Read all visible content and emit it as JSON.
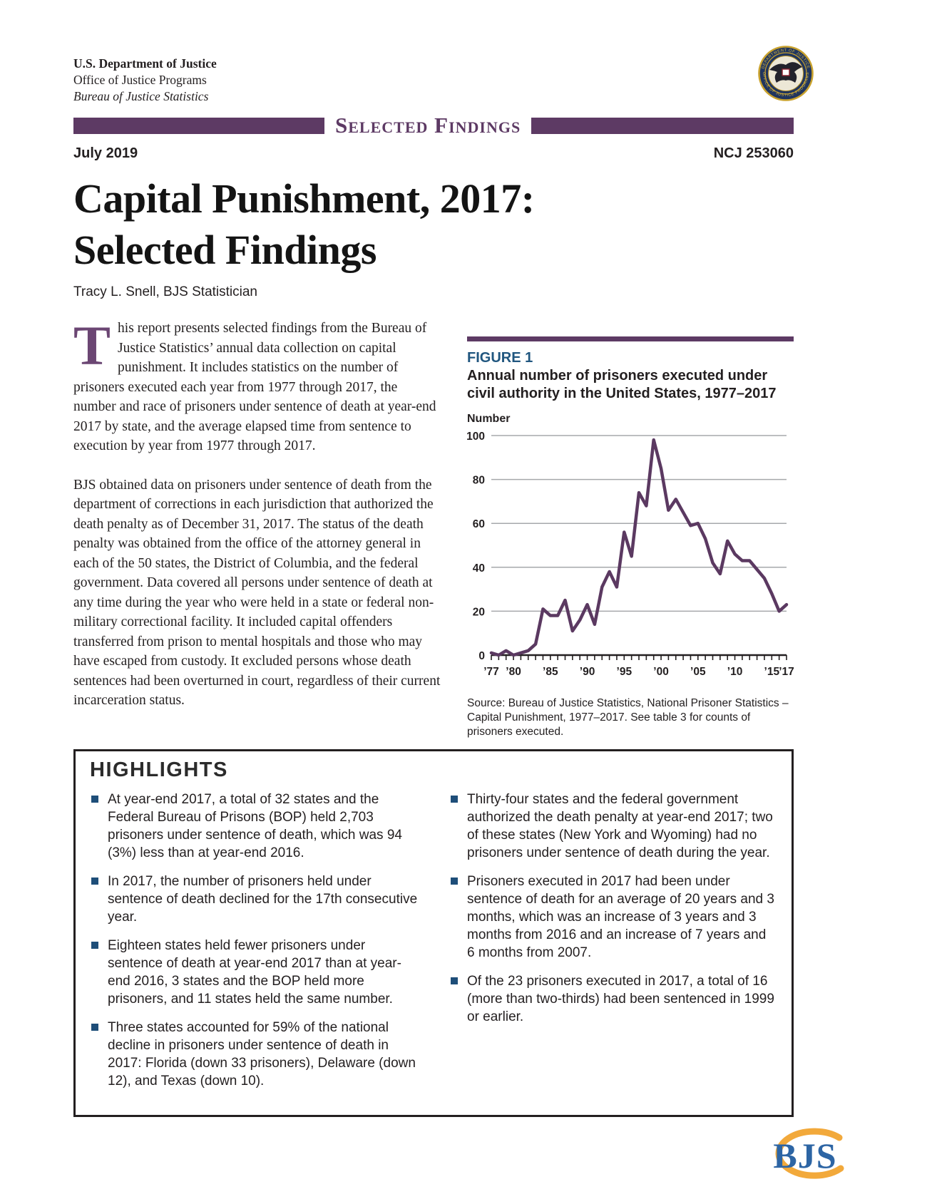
{
  "header": {
    "dept": "U.S. Department of Justice",
    "office": "Office of Justice Programs",
    "bureau": "Bureau of Justice Statistics",
    "banner": "Selected Findings",
    "date": "July 2019",
    "ncj": "NCJ 253060",
    "seal_top": "DEPARTMENT OF JUSTICE",
    "seal_bottom": "OFFICE OF JUSTICE PROGRAMS"
  },
  "title": {
    "line1": "Capital Punishment, 2017:",
    "line2": "Selected Findings",
    "byline": "Tracy L. Snell, BJS Statistician"
  },
  "intro": {
    "dropcap": "T",
    "p1_rest": "his report presents selected findings from the Bureau of Justice Statistics’ annual data collection on capital punishment. It includes statistics on the number of prisoners executed each year from 1977 through 2017, the number and race of prisoners under sentence of death at year-end 2017 by state, and the average elapsed time from sentence to execution by year from 1977 through 2017.",
    "p2": "BJS obtained data on prisoners under sentence of death from the department of corrections in each jurisdiction that authorized the death penalty as of December 31, 2017. The status of the death penalty was obtained from the office of the attorney general in each of the 50 states, the District of Columbia, and the federal government. Data covered all persons under sentence of death at any time during the year who were held in a state or federal non-military correctional facility. It included capital offenders transferred from prison to mental hospitals and those who may have escaped from custody. It excluded persons whose death sentences had been overturned in court, regardless of their current incarceration status."
  },
  "figure": {
    "label": "FIGURE 1",
    "title": "Annual number of prisoners executed under civil authority in the United States, 1977–2017",
    "ylabel": "Number",
    "source": "Source: Bureau of Justice Statistics, National Prisoner Statistics – Capital Punishment, 1977–2017. See table 3 for counts of prisoners executed.",
    "chart_data": {
      "type": "line",
      "title": "Annual number of prisoners executed under civil authority in the United States, 1977–2017",
      "xlabel": "",
      "ylabel": "Number",
      "ylim": [
        0,
        100
      ],
      "grid": true,
      "x": [
        1977,
        1978,
        1979,
        1980,
        1981,
        1982,
        1983,
        1984,
        1985,
        1986,
        1987,
        1988,
        1989,
        1990,
        1991,
        1992,
        1993,
        1994,
        1995,
        1996,
        1997,
        1998,
        1999,
        2000,
        2001,
        2002,
        2003,
        2004,
        2005,
        2006,
        2007,
        2008,
        2009,
        2010,
        2011,
        2012,
        2013,
        2014,
        2015,
        2016,
        2017
      ],
      "values": [
        1,
        0,
        2,
        0,
        1,
        2,
        5,
        21,
        18,
        18,
        25,
        11,
        16,
        23,
        14,
        31,
        38,
        31,
        56,
        45,
        74,
        68,
        98,
        85,
        66,
        71,
        65,
        59,
        60,
        53,
        42,
        37,
        52,
        46,
        43,
        43,
        39,
        35,
        28,
        20,
        23
      ],
      "yticks": [
        0,
        20,
        40,
        60,
        80,
        100
      ],
      "xticks": [
        {
          "year": 1977,
          "label": "’77"
        },
        {
          "year": 1980,
          "label": "’80"
        },
        {
          "year": 1985,
          "label": "’85"
        },
        {
          "year": 1990,
          "label": "’90"
        },
        {
          "year": 1995,
          "label": "’95"
        },
        {
          "year": 2000,
          "label": "’00"
        },
        {
          "year": 2005,
          "label": "’05"
        },
        {
          "year": 2010,
          "label": "’10"
        },
        {
          "year": 2015,
          "label": "’15"
        },
        {
          "year": 2017,
          "label": "’17"
        }
      ],
      "line_color": "#5b3961",
      "grid_color": "#a6a8ab"
    }
  },
  "highlights": {
    "heading": "HIGHLIGHTS",
    "col1": [
      "At year-end 2017, a total of 32 states and the Federal Bureau of Prisons (BOP) held 2,703 prisoners under sentence of death, which was 94 (3%) less than at year-end 2016.",
      "In 2017, the number of prisoners held under sentence of death declined for the 17th consecutive year.",
      "Eighteen states held fewer prisoners under sentence of death at year-end 2017 than at year-end 2016, 3 states and the BOP held more prisoners, and 11 states held the same number.",
      "Three states accounted for 59% of the national decline in prisoners under sentence of death in 2017: Florida (down 33 prisoners), Delaware (down 12), and Texas (down 10)."
    ],
    "col2": [
      "Thirty-four states and the federal government authorized the death penalty at year-end 2017; two of these states (New York and Wyoming) had no prisoners under sentence of death during the year.",
      "Prisoners executed in 2017 had been under sentence of death for an average of 20 years and 3 months, which was an increase of 3 years and 3 months from 2016 and an increase of 7 years and 6 months from 2007.",
      "Of the 23 prisoners executed in 2017, a total of 16 (more than two-thirds) had been sentenced in 1999 or earlier."
    ]
  },
  "logo": {
    "text": "BJS"
  },
  "colors": {
    "brand_purple": "#5d3a64",
    "dropcap_purple": "#6b4673",
    "figure_label_blue": "#20567f",
    "bullet_navy": "#1e4e79",
    "line_purple": "#5b3961",
    "grid_gray": "#a6a8ab",
    "logo_blue": "#2d65a4",
    "logo_orange": "#f2a93b",
    "seal_navy": "#20355e",
    "seal_gold": "#c9a22e"
  }
}
